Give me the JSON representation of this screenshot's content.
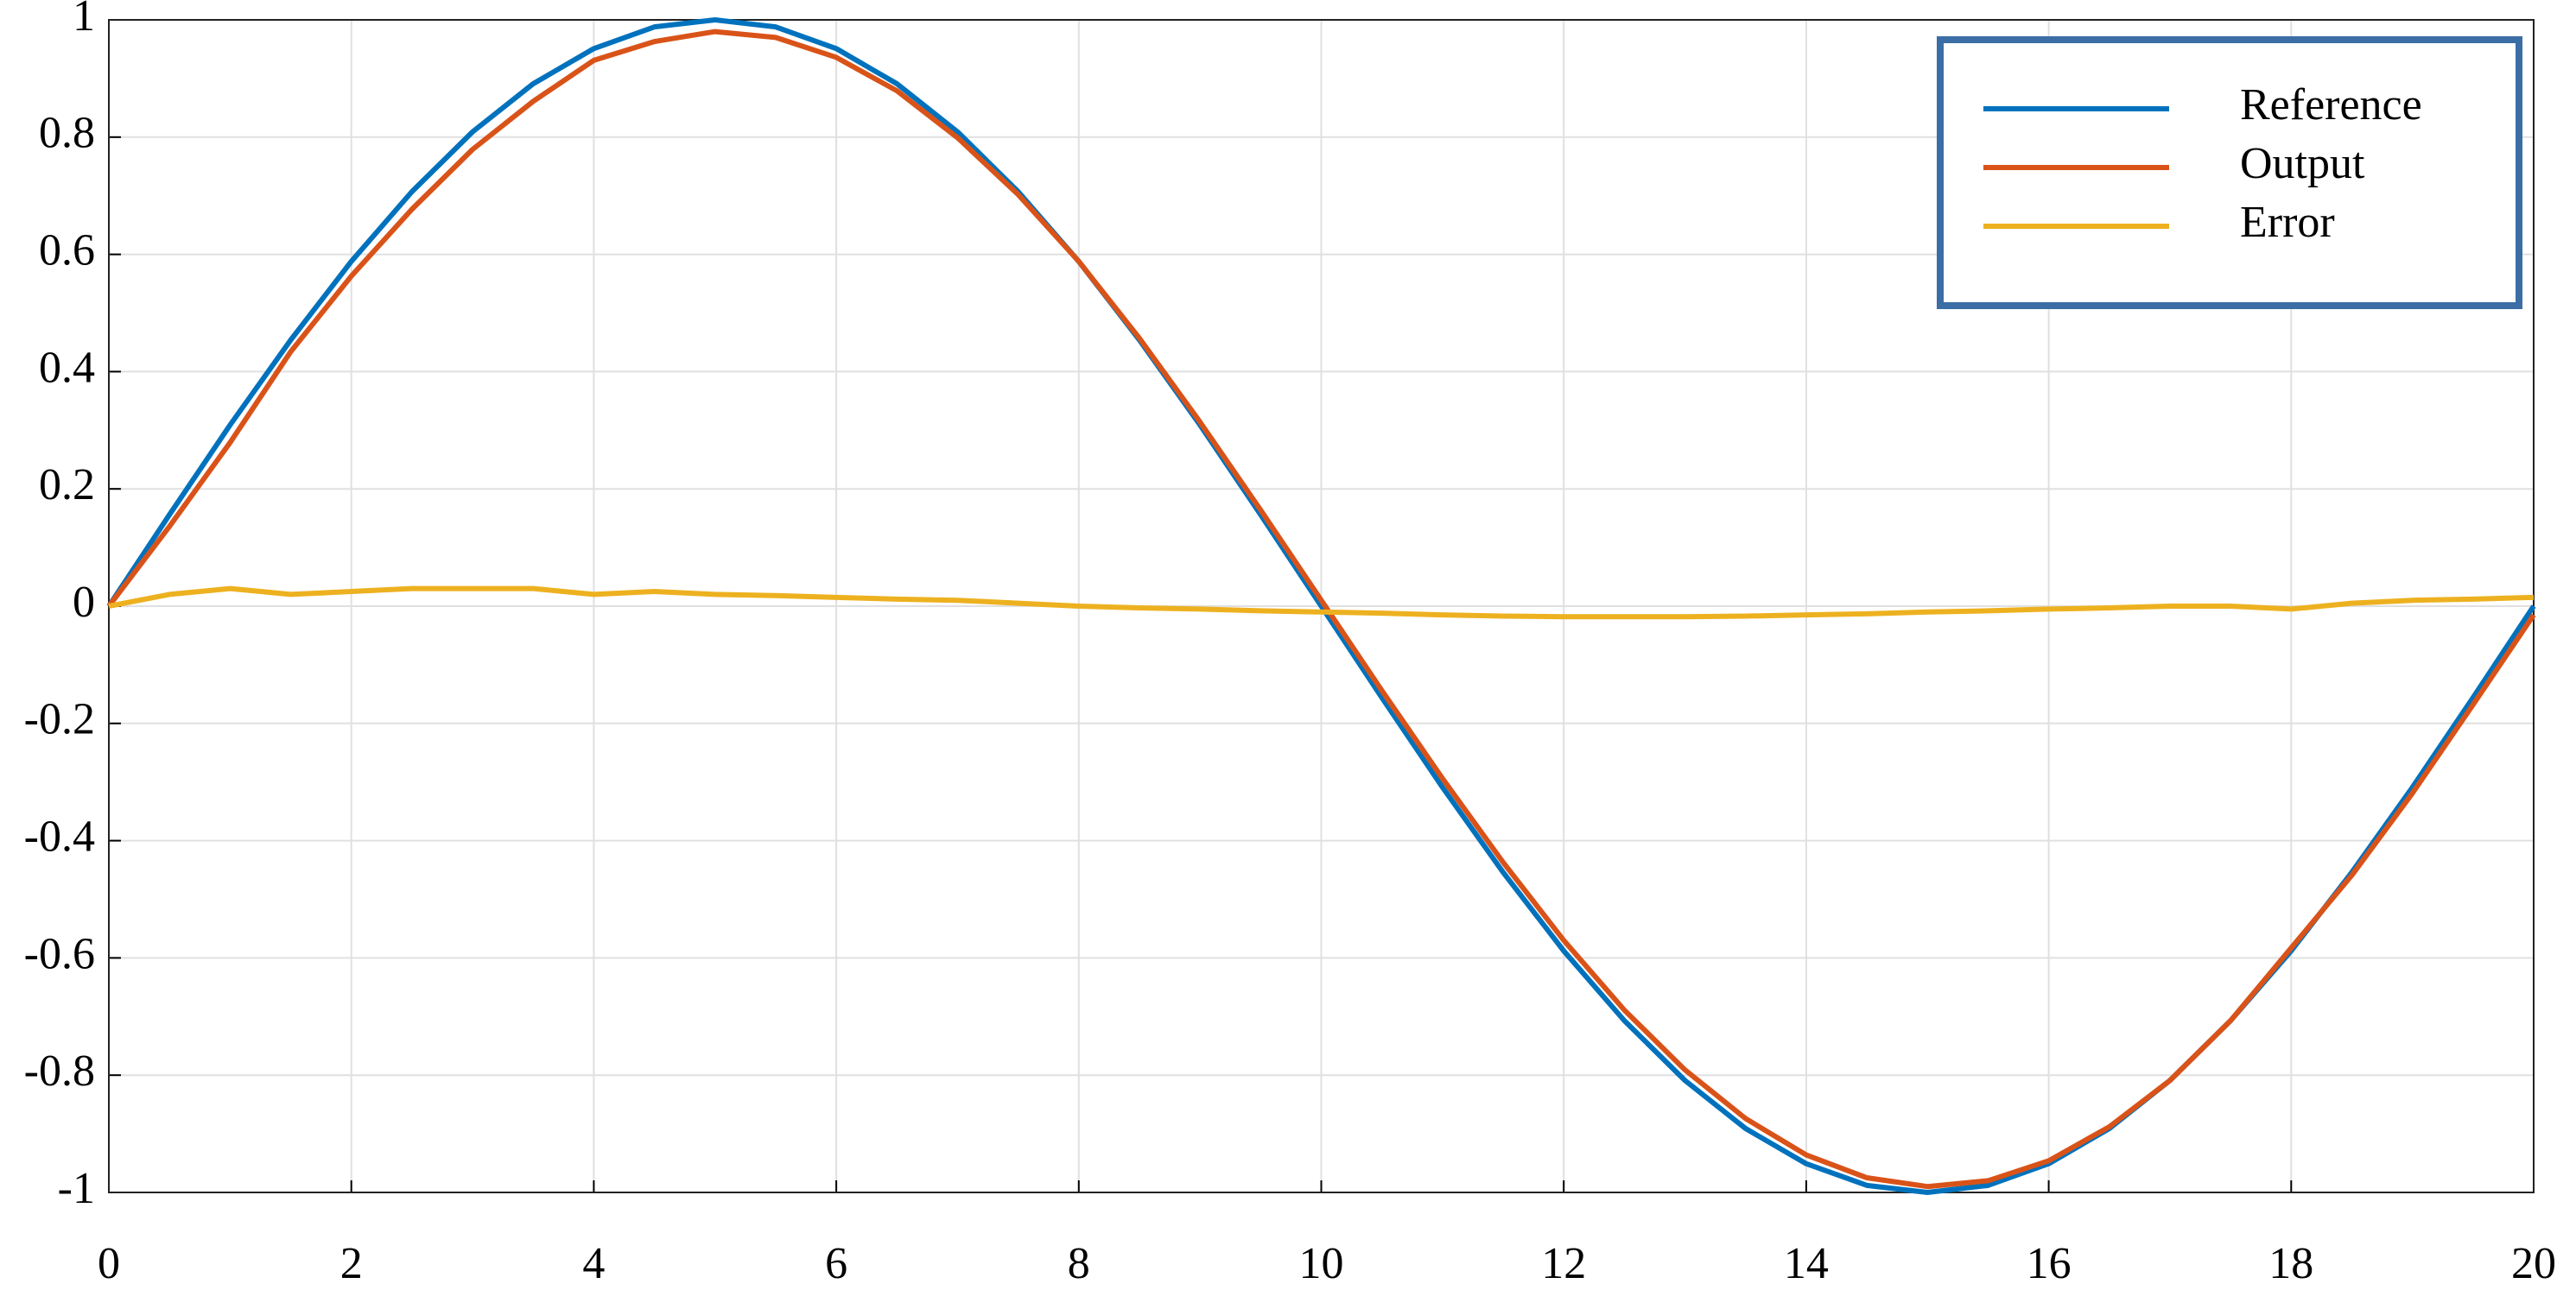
{
  "chart_data": {
    "type": "line",
    "x": [
      0,
      0.5,
      1,
      1.5,
      2,
      2.5,
      3,
      3.5,
      4,
      4.5,
      5,
      5.5,
      6,
      6.5,
      7,
      7.5,
      8,
      8.5,
      9,
      9.5,
      10,
      10.5,
      11,
      11.5,
      12,
      12.5,
      13,
      13.5,
      14,
      14.5,
      15,
      15.5,
      16,
      16.5,
      17,
      17.5,
      18,
      18.5,
      19,
      19.5,
      20
    ],
    "series": [
      {
        "name": "Reference",
        "color": "#0072BD",
        "values": [
          0,
          0.156,
          0.309,
          0.454,
          0.588,
          0.707,
          0.809,
          0.891,
          0.951,
          0.988,
          1,
          0.988,
          0.951,
          0.891,
          0.809,
          0.707,
          0.588,
          0.454,
          0.309,
          0.156,
          0,
          -0.156,
          -0.309,
          -0.454,
          -0.588,
          -0.707,
          -0.809,
          -0.891,
          -0.951,
          -0.988,
          -1,
          -0.988,
          -0.951,
          -0.891,
          -0.809,
          -0.707,
          -0.588,
          -0.454,
          -0.309,
          -0.156,
          0
        ]
      },
      {
        "name": "Output",
        "color": "#D95319",
        "values": [
          0,
          0.136,
          0.279,
          0.434,
          0.563,
          0.677,
          0.779,
          0.861,
          0.931,
          0.963,
          0.98,
          0.97,
          0.936,
          0.879,
          0.799,
          0.702,
          0.588,
          0.457,
          0.314,
          0.164,
          0.01,
          -0.144,
          -0.294,
          -0.437,
          -0.57,
          -0.689,
          -0.791,
          -0.874,
          -0.936,
          -0.975,
          -0.99,
          -0.98,
          -0.946,
          -0.888,
          -0.809,
          -0.707,
          -0.583,
          -0.459,
          -0.319,
          -0.168,
          -0.015
        ]
      },
      {
        "name": "Error",
        "color": "#EDB120",
        "values": [
          0,
          0.02,
          0.03,
          0.02,
          0.025,
          0.03,
          0.03,
          0.03,
          0.02,
          0.025,
          0.02,
          0.018,
          0.015,
          0.012,
          0.01,
          0.005,
          0,
          -0.003,
          -0.005,
          -0.008,
          -0.01,
          -0.012,
          -0.015,
          -0.017,
          -0.018,
          -0.018,
          -0.018,
          -0.017,
          -0.015,
          -0.013,
          -0.01,
          -0.008,
          -0.005,
          -0.003,
          0,
          0,
          -0.005,
          0.005,
          0.01,
          0.012,
          0.015
        ]
      }
    ],
    "xlim": [
      0,
      20
    ],
    "xticks": [
      0,
      2,
      4,
      6,
      8,
      10,
      12,
      14,
      16,
      18,
      20
    ],
    "ylim": [
      -1,
      1
    ],
    "yticks": [
      -1,
      -0.8,
      -0.6,
      -0.4,
      -0.2,
      0,
      0.2,
      0.4,
      0.6,
      0.8,
      1
    ],
    "grid": true,
    "legend": "upper right"
  }
}
